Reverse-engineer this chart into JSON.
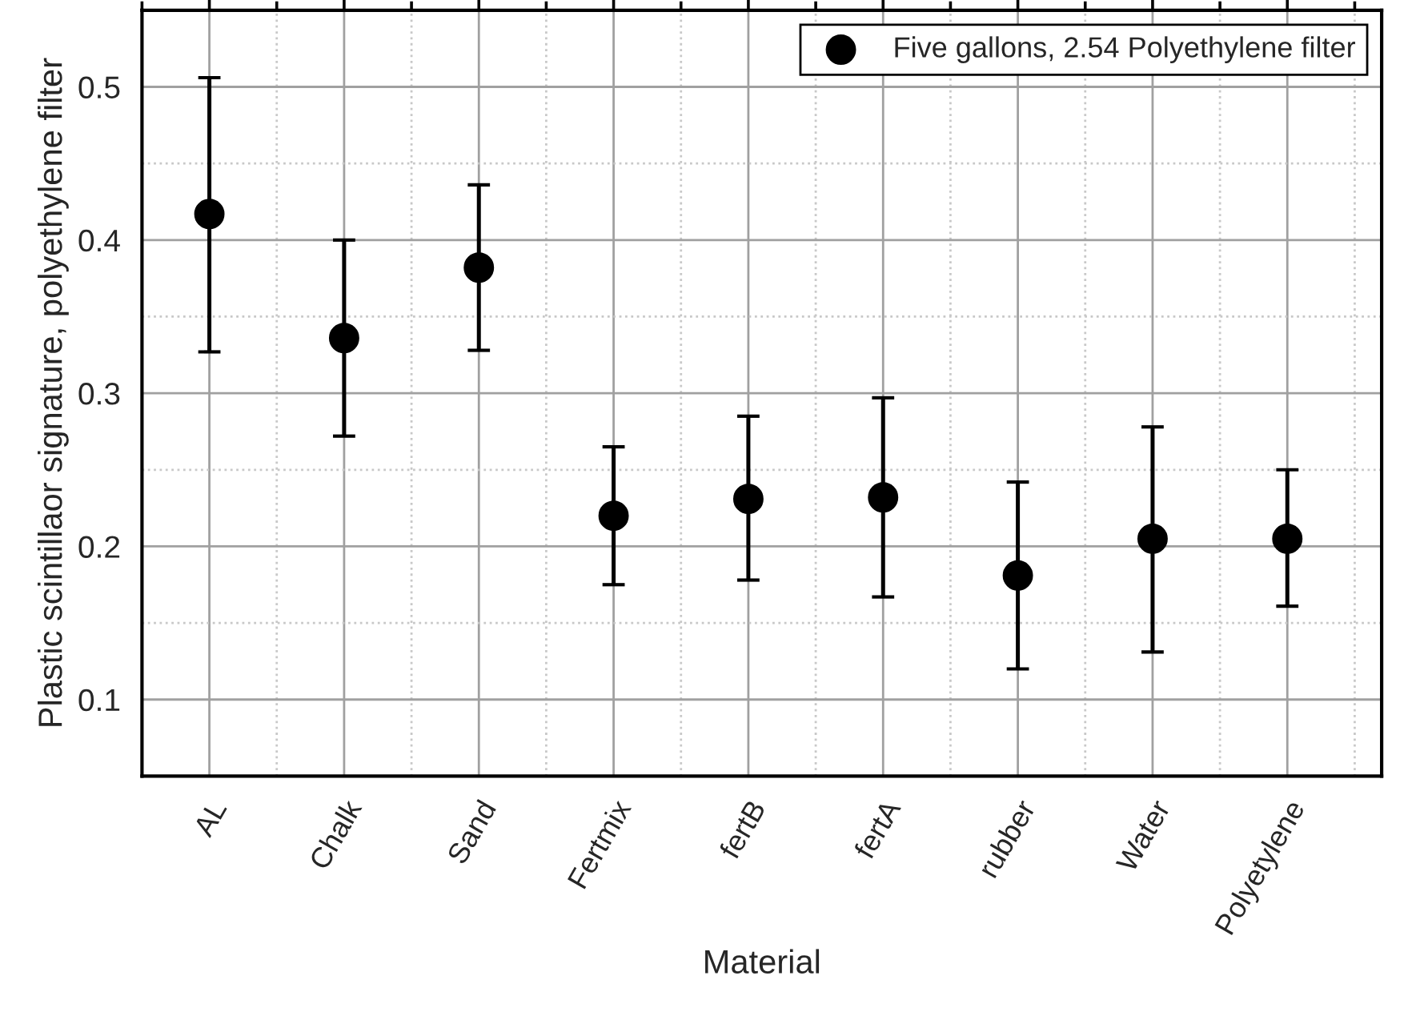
{
  "chart_data": {
    "type": "scatter",
    "xlabel": "Material",
    "ylabel": "Plastic scintillaor signature, polyethylene filter",
    "categories": [
      "AL",
      "Chalk",
      "Sand",
      "Fertmix",
      "fertB",
      "fertA",
      "rubber",
      "Water",
      "Polyetylene"
    ],
    "series": [
      {
        "name": "Five gallons, 2.54 Polyethylene filter",
        "color": "#000000",
        "values": [
          0.417,
          0.336,
          0.382,
          0.22,
          0.231,
          0.232,
          0.181,
          0.205,
          0.205
        ],
        "errors": [
          [
            0.327,
            0.506
          ],
          [
            0.272,
            0.4
          ],
          [
            0.328,
            0.436
          ],
          [
            0.175,
            0.265
          ],
          [
            0.178,
            0.285
          ],
          [
            0.167,
            0.297
          ],
          [
            0.12,
            0.242
          ],
          [
            0.131,
            0.278
          ],
          [
            0.161,
            0.25
          ]
        ]
      }
    ],
    "ylim": [
      0.05,
      0.55
    ],
    "yticks": [
      0.1,
      0.2,
      0.3,
      0.4,
      0.5
    ],
    "grid": true,
    "legend": "top right",
    "marker": "circle"
  }
}
